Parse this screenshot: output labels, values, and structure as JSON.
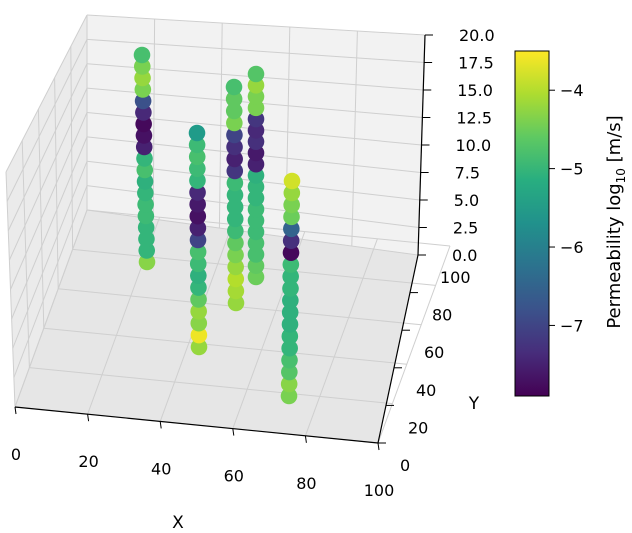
{
  "chart_data": {
    "type": "scatter",
    "subtype": "3d-scatter",
    "xlabel": "X",
    "ylabel": "Y",
    "zlabel": "",
    "xlim": [
      0,
      100
    ],
    "ylim": [
      0,
      100
    ],
    "zlim": [
      0,
      20
    ],
    "x_ticks": [
      "0",
      "20",
      "40",
      "60",
      "80",
      "100"
    ],
    "y_ticks": [
      "0",
      "20",
      "40",
      "60",
      "80",
      "100"
    ],
    "z_ticks": [
      "0.0",
      "2.5",
      "5.0",
      "7.5",
      "10.0",
      "12.5",
      "15.0",
      "17.5",
      "20.0"
    ],
    "grid": true,
    "colormap": "viridis",
    "colorbar": {
      "label": "Permeability log",
      "label_sub": "10",
      "label_unit": " [m/s]",
      "range": [
        -7.9,
        -3.5
      ],
      "ticks": [
        "−4",
        "−5",
        "−6",
        "−7"
      ],
      "tick_values": [
        -4,
        -5,
        -6,
        -7
      ]
    },
    "series": [
      {
        "x": 20,
        "y": 80,
        "z": [
          0,
          1,
          2,
          3,
          4,
          5,
          6,
          7,
          8,
          9,
          10,
          11,
          12,
          13,
          14,
          15,
          16,
          17,
          18
        ],
        "log10_permeability": [
          -4.3,
          -5.0,
          -5.0,
          -5.0,
          -4.9,
          -4.9,
          -5.0,
          -5.1,
          -4.8,
          -5.0,
          -7.5,
          -7.7,
          -7.8,
          -7.4,
          -6.8,
          -4.4,
          -4.2,
          -4.4,
          -4.8
        ]
      },
      {
        "x": 45,
        "y": 60,
        "z": [
          0,
          1,
          2,
          3,
          4,
          5,
          6,
          7,
          8,
          9,
          10,
          11,
          12,
          13,
          14,
          15,
          16,
          17,
          18
        ],
        "log10_permeability": [
          -4.2,
          -3.6,
          -4.3,
          -4.2,
          -4.6,
          -5.0,
          -5.1,
          -4.9,
          -4.8,
          -7.0,
          -7.5,
          -7.7,
          -7.6,
          -7.4,
          -5.0,
          -4.9,
          -4.8,
          -4.9,
          -5.5
        ]
      },
      {
        "x": 60,
        "y": 90,
        "z": [
          0,
          1,
          2,
          3,
          4,
          5,
          6,
          7,
          8,
          9,
          10,
          11,
          12,
          13,
          14,
          15,
          16,
          17,
          18
        ],
        "log10_permeability": [
          -4.2,
          -4.1,
          -4.0,
          -4.2,
          -4.4,
          -4.6,
          -4.9,
          -5.0,
          -5.0,
          -5.0,
          -4.9,
          -7.2,
          -7.5,
          -7.3,
          -7.0,
          -4.4,
          -4.6,
          -4.6,
          -4.8
        ]
      },
      {
        "x": 65,
        "y": 100,
        "z": [
          0,
          1,
          2,
          3,
          4,
          5,
          6,
          7,
          8,
          9,
          10,
          11,
          12,
          13,
          14,
          15,
          16,
          17,
          18
        ],
        "log10_permeability": [
          -4.5,
          -4.6,
          -4.8,
          -4.8,
          -4.9,
          -4.9,
          -4.9,
          -5.0,
          -5.0,
          -5.1,
          -7.5,
          -7.6,
          -7.3,
          -7.4,
          -7.2,
          -4.4,
          -4.4,
          -4.2,
          -4.7
        ]
      },
      {
        "x": 80,
        "y": 60,
        "z": [
          0,
          1,
          2,
          3,
          4,
          5,
          6,
          7,
          8,
          9,
          10,
          11,
          12,
          13,
          14,
          15,
          16,
          17,
          18
        ],
        "log10_permeability": [
          -4.4,
          -4.3,
          -4.7,
          -4.8,
          -5.0,
          -5.0,
          -5.1,
          -5.1,
          -5.1,
          -5.0,
          -5.0,
          -4.9,
          -7.8,
          -7.3,
          -6.5,
          -4.5,
          -4.4,
          -4.2,
          -3.8
        ]
      }
    ]
  }
}
